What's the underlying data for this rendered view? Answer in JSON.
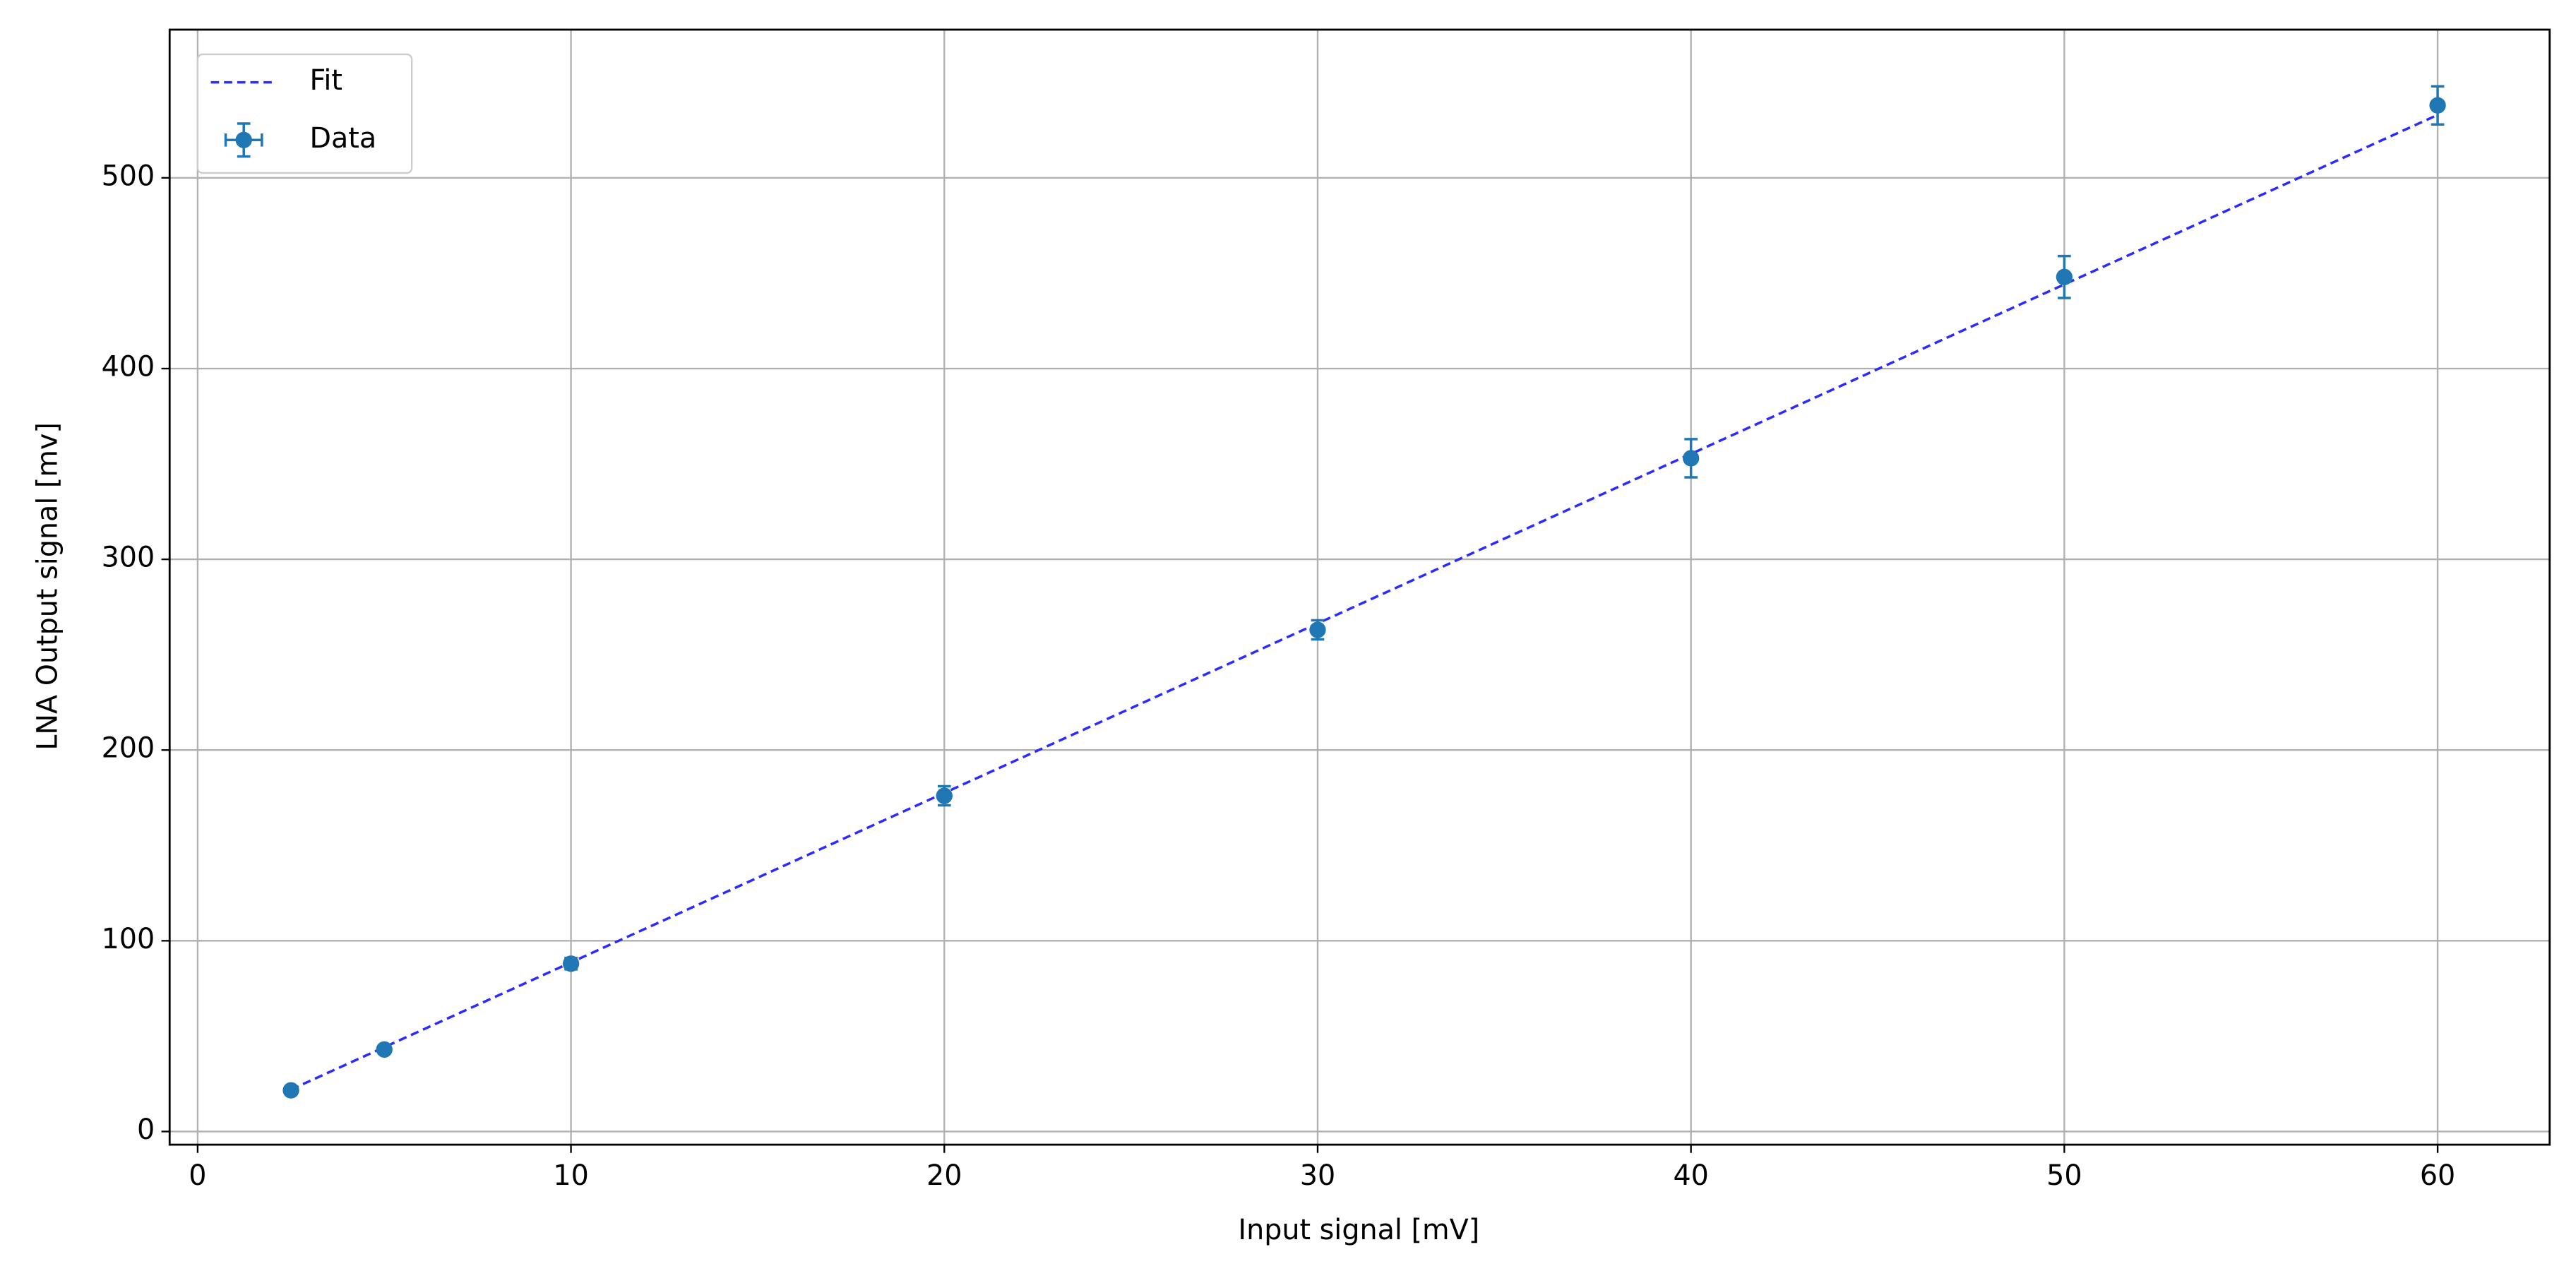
{
  "chart_data": {
    "type": "scatter",
    "x_label": "Input signal [mV]",
    "y_label": "LNA Output signal [mv]",
    "xlim": [
      -0.75,
      63
    ],
    "ylim": [
      -6.9,
      577.7
    ],
    "xticks": [
      0,
      10,
      20,
      30,
      40,
      50,
      60
    ],
    "yticks": [
      0,
      100,
      200,
      300,
      400,
      500
    ],
    "grid": true,
    "legend": "upper left",
    "series": [
      {
        "name": "Fit",
        "color": "#2b2bff",
        "linestyle": "dashed",
        "x": [
          2.5,
          60
        ],
        "values": [
          22,
          533
        ]
      },
      {
        "name": "Data",
        "color": "#1f77b4",
        "x": [
          2.5,
          5,
          10,
          20,
          30,
          40,
          50,
          60
        ],
        "values": [
          21.6,
          43,
          88,
          176,
          263,
          353,
          448,
          538
        ],
        "yerr": [
          2,
          2,
          3,
          5,
          5,
          10,
          11,
          10
        ],
        "xerr": [
          0.1,
          0.1,
          0.1,
          0.1,
          0.1,
          0.1,
          0.1,
          0.1
        ]
      }
    ]
  }
}
